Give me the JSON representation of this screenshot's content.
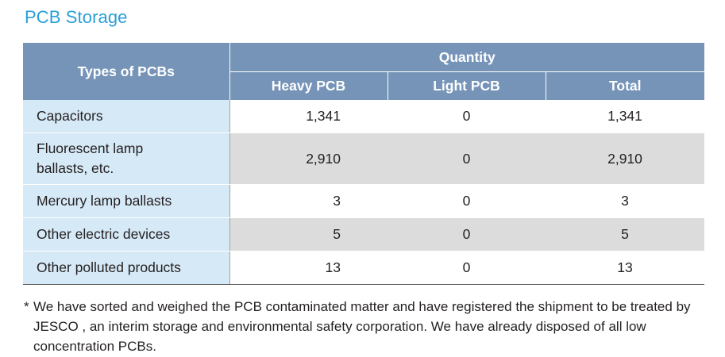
{
  "title": "PCB Storage",
  "table": {
    "header_types": "Types of PCBs",
    "header_quantity": "Quantity",
    "sub_headers": [
      "Heavy PCB",
      "Light PCB",
      "Total"
    ],
    "rows": [
      {
        "type": "Capacitors",
        "heavy": "1,341",
        "light": "0",
        "total": "1,341"
      },
      {
        "type": "Fluorescent lamp ballasts, etc.",
        "heavy": "2,910",
        "light": "0",
        "total": "2,910"
      },
      {
        "type": "Mercury lamp ballasts",
        "heavy": "3",
        "light": "0",
        "total": "3"
      },
      {
        "type": "Other electric devices",
        "heavy": "5",
        "light": "0",
        "total": "5"
      },
      {
        "type": "Other polluted products",
        "heavy": "13",
        "light": "0",
        "total": "13"
      }
    ]
  },
  "footnote": {
    "marker": "*",
    "text": "We have sorted and weighed the PCB contaminated matter and have registered the shipment to be treated by JESCO , an interim storage and environmental safety corporation. We have already disposed of all low concentration PCBs."
  }
}
